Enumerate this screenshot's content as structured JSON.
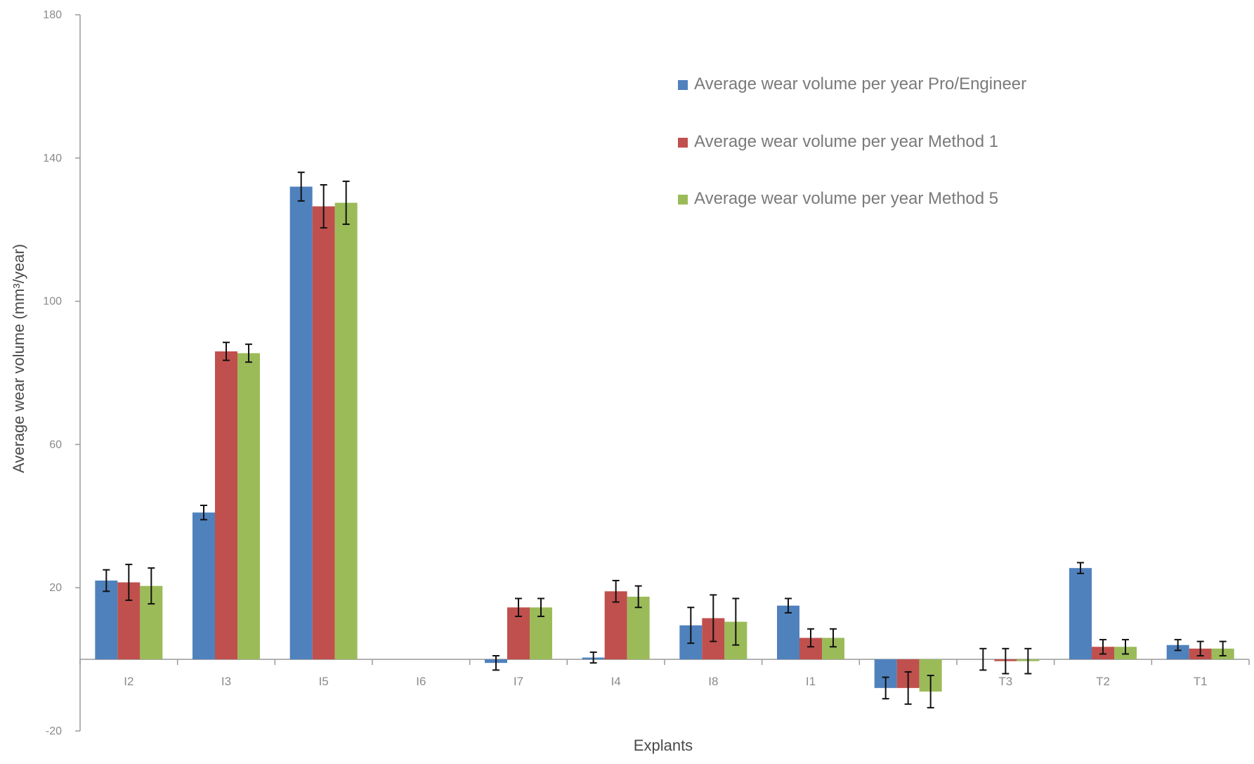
{
  "chart_data": {
    "type": "bar",
    "title": "",
    "xlabel": "Explants",
    "ylabel": "Average wear volume (mm³/year)",
    "ylim": [
      -20,
      180
    ],
    "yticks": [
      -20,
      20,
      60,
      100,
      140,
      180
    ],
    "grid": false,
    "legend_position": "top-right",
    "categories": [
      "I2",
      "I3",
      "I5",
      "I6",
      "I7",
      "I4",
      "I8",
      "I1",
      "",
      "T3",
      "T2",
      "T1"
    ],
    "series": [
      {
        "name": "Average wear volume per year Pro/Engineer",
        "color": "#4f81bd",
        "values": [
          22,
          41,
          132,
          0,
          -1,
          0.5,
          9.5,
          15,
          -8,
          0,
          25.5,
          4
        ],
        "errors": [
          3,
          2,
          4,
          0,
          2,
          1.5,
          5,
          2,
          3,
          3,
          1.5,
          1.5
        ]
      },
      {
        "name": "Average wear volume per year Method 1",
        "color": "#c0504d",
        "values": [
          21.5,
          86,
          126.5,
          0,
          14.5,
          19,
          11.5,
          6,
          -8,
          -0.5,
          3.5,
          3
        ],
        "errors": [
          5,
          2.5,
          6,
          0,
          2.5,
          3,
          6.5,
          2.5,
          4.5,
          3.5,
          2,
          2
        ]
      },
      {
        "name": "Average wear volume per year Method 5",
        "color": "#9bbb59",
        "values": [
          20.5,
          85.5,
          127.5,
          0,
          14.5,
          17.5,
          10.5,
          6,
          -9,
          -0.5,
          3.5,
          3
        ],
        "errors": [
          5,
          2.5,
          6,
          0,
          2.5,
          3,
          6.5,
          2.5,
          4.5,
          3.5,
          2,
          2
        ]
      }
    ]
  }
}
